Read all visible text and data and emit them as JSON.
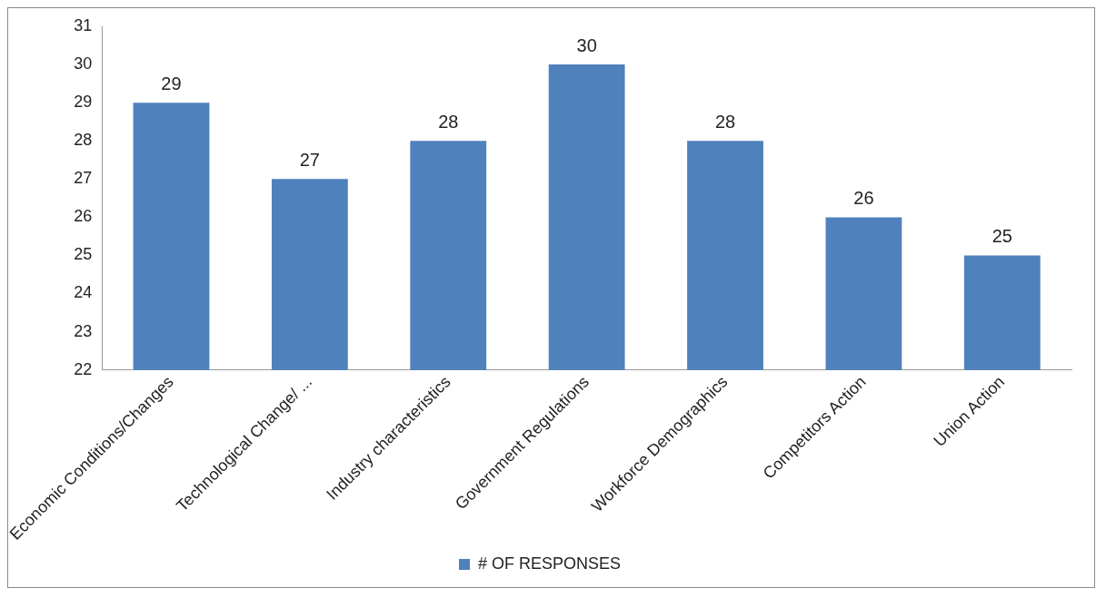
{
  "chart_data": {
    "type": "bar",
    "categories": [
      "Economic Conditions/Changes",
      "Technological Change/ ...",
      "Industry characteristics",
      "Government Regulations",
      "Workforce Demographics",
      "Competitors Action",
      "Union Action"
    ],
    "series": [
      {
        "name": "# OF RESPONSES",
        "color": "#4f81bd",
        "values": [
          29,
          27,
          28,
          30,
          28,
          26,
          25
        ]
      }
    ],
    "ylim": [
      22,
      31
    ],
    "yticks": [
      22,
      23,
      24,
      25,
      26,
      27,
      28,
      29,
      30,
      31
    ],
    "data_labels": true,
    "legend": "bottom",
    "grid": false
  }
}
